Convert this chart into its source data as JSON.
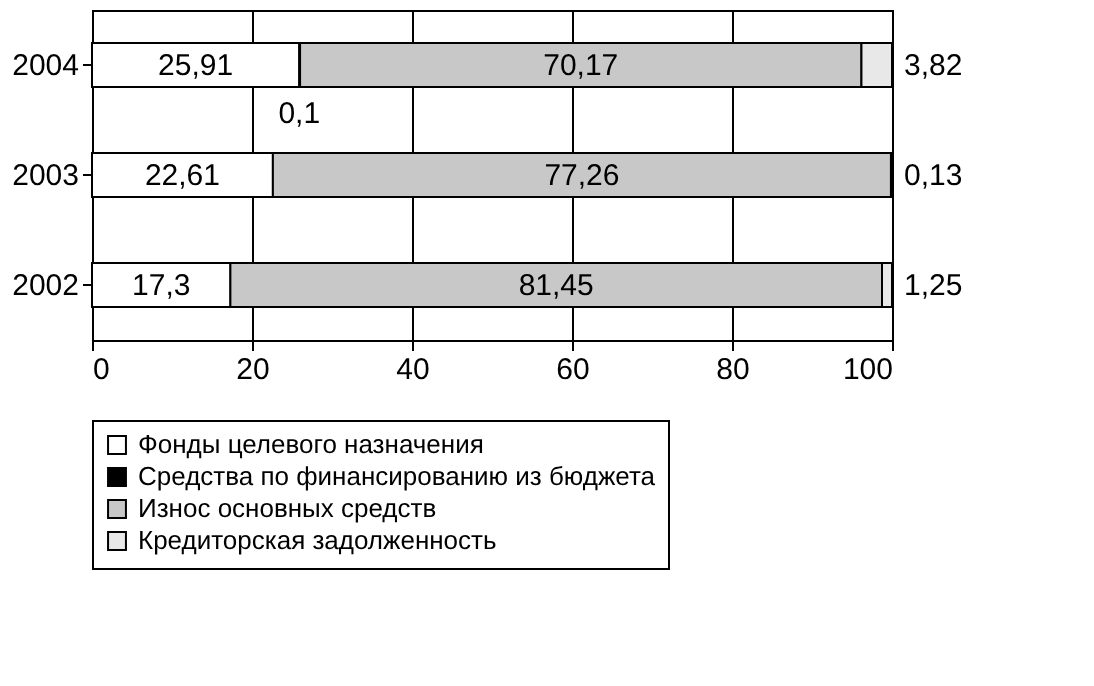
{
  "chart_data": {
    "type": "bar",
    "orientation": "horizontal",
    "stacked": true,
    "categories": [
      "2004",
      "2003",
      "2002"
    ],
    "series": [
      {
        "name": "Фонды целевого назначения",
        "color": "#ffffff",
        "values": [
          25.91,
          22.61,
          17.3
        ],
        "value_labels": [
          "25,91",
          "22,61",
          "17,3"
        ]
      },
      {
        "name": "Средства по финансированию из бюджета",
        "color": "#000000",
        "values": [
          0.1,
          null,
          null
        ],
        "value_labels": [
          "0,1",
          null,
          null
        ]
      },
      {
        "name": "Износ основных средств",
        "color": "#c8c8c8",
        "values": [
          70.17,
          77.26,
          81.45
        ],
        "value_labels": [
          "70,17",
          "77,26",
          "81,45"
        ]
      },
      {
        "name": "Кредиторская задолженность",
        "color": "#e8e8e8",
        "values": [
          3.82,
          0.13,
          1.25
        ],
        "value_labels": [
          "3,82",
          "0,13",
          "1,25"
        ]
      }
    ],
    "xlim": [
      0,
      100
    ],
    "xticks": [
      0,
      20,
      40,
      60,
      80,
      100
    ],
    "grid": "x",
    "legend": "bottom"
  }
}
